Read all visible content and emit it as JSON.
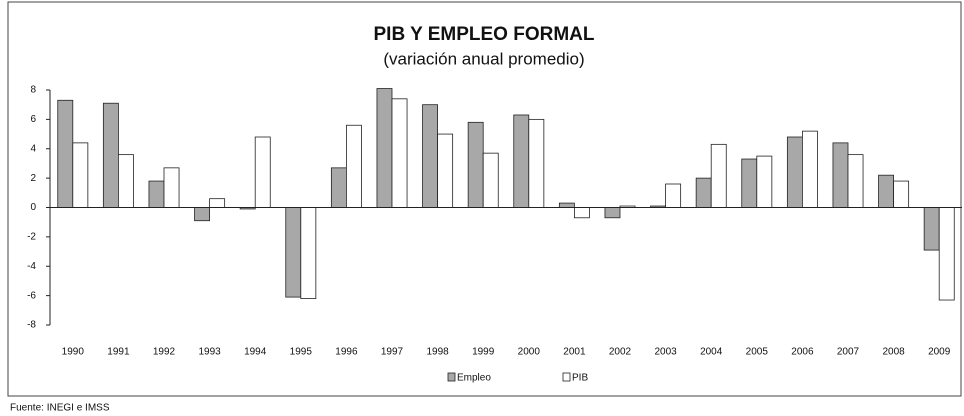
{
  "chart_data": {
    "type": "bar",
    "title": "PIB Y EMPLEO FORMAL",
    "subtitle": "(variación anual promedio)",
    "source": "Fuente: INEGI e IMSS",
    "categories": [
      "1990",
      "1991",
      "1992",
      "1993",
      "1994",
      "1995",
      "1996",
      "1997",
      "1998",
      "1999",
      "2000",
      "2001",
      "2002",
      "2003",
      "2004",
      "2005",
      "2006",
      "2007",
      "2008",
      "2009"
    ],
    "series": [
      {
        "name": "Empleo",
        "color": "#a8a8a8",
        "values": [
          7.3,
          7.1,
          1.8,
          -0.9,
          -0.1,
          -6.1,
          2.7,
          8.1,
          7.0,
          5.8,
          6.3,
          0.3,
          -0.7,
          0.1,
          2.0,
          3.3,
          4.8,
          4.4,
          2.2,
          -2.9
        ]
      },
      {
        "name": "PIB",
        "color": "#ffffff",
        "values": [
          4.4,
          3.6,
          2.7,
          0.6,
          4.8,
          -6.2,
          5.6,
          7.4,
          5.0,
          3.7,
          6.0,
          -0.7,
          0.1,
          1.6,
          4.3,
          3.5,
          5.2,
          3.6,
          1.8,
          -6.3
        ]
      }
    ],
    "ylim": [
      -8,
      8
    ],
    "yticks": [
      -8,
      -6,
      -4,
      -2,
      0,
      2,
      4,
      6,
      8
    ],
    "grid": false,
    "legend": "bottom"
  }
}
